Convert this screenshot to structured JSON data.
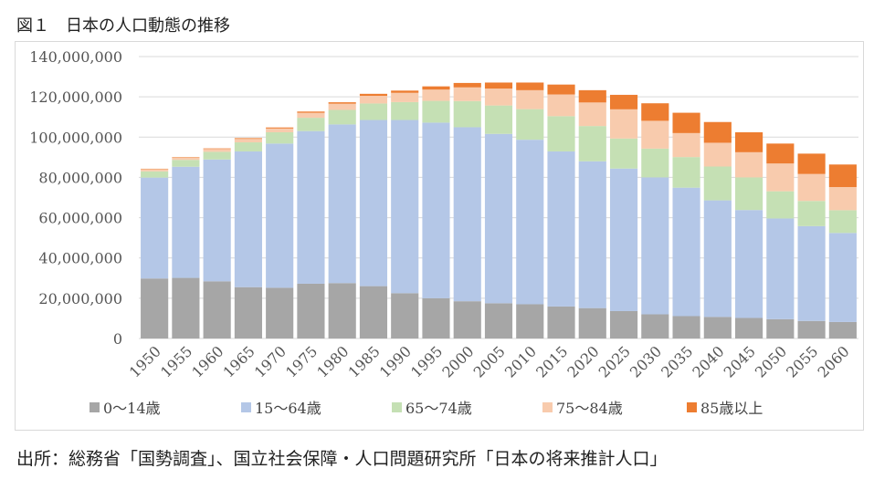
{
  "header": {
    "title": "図１　日本の人口動態の推移"
  },
  "footer": {
    "source": "出所：総務省「国勢調査」、国立社会保障・人口問題研究所「日本の将来推計人口」"
  },
  "chart_data": {
    "type": "bar",
    "stacked": true,
    "categories": [
      "1950",
      "1955",
      "1960",
      "1965",
      "1970",
      "1975",
      "1980",
      "1985",
      "1990",
      "1995",
      "2000",
      "2005",
      "2010",
      "2015",
      "2020",
      "2025",
      "2030",
      "2035",
      "2040",
      "2045",
      "2050",
      "2055",
      "2060"
    ],
    "series": [
      {
        "name": "0〜14歳",
        "color": "#a6a6a6",
        "values": [
          29800000,
          30100000,
          28400000,
          25500000,
          25200000,
          27200000,
          27500000,
          26000000,
          22500000,
          20000000,
          18500000,
          17500000,
          17000000,
          15900000,
          15100000,
          13600000,
          12000000,
          11100000,
          10700000,
          10200000,
          9600000,
          8700000,
          8200000
        ]
      },
      {
        "name": "15〜64歳",
        "color": "#b4c7e7",
        "values": [
          50100000,
          55200000,
          60500000,
          67400000,
          71600000,
          75800000,
          78800000,
          82500000,
          86000000,
          87200000,
          86400000,
          84100000,
          81700000,
          77000000,
          72900000,
          70800000,
          68000000,
          63800000,
          57900000,
          53600000,
          50000000,
          47100000,
          44200000
        ]
      },
      {
        "name": "65〜74歳",
        "color": "#c5e0b4",
        "values": [
          3100000,
          3400000,
          3800000,
          4500000,
          5600000,
          6600000,
          7200000,
          8200000,
          8900000,
          10800000,
          13000000,
          14100000,
          15200000,
          17500000,
          17500000,
          14900000,
          14300000,
          15200000,
          16800000,
          16200000,
          13500000,
          12500000,
          11300000
        ]
      },
      {
        "name": "75〜84歳",
        "color": "#f8cbad",
        "values": [
          1100000,
          1200000,
          1400000,
          1700000,
          1900000,
          2500000,
          3100000,
          3800000,
          4600000,
          5600000,
          6800000,
          8400000,
          9400000,
          10800000,
          11700000,
          14500000,
          13800000,
          11900000,
          11800000,
          12500000,
          13800000,
          13400000,
          11500000
        ]
      },
      {
        "name": "85歳以上",
        "color": "#ed7d31",
        "values": [
          200000,
          200000,
          300000,
          400000,
          500000,
          600000,
          700000,
          1000000,
          1100000,
          1600000,
          2200000,
          3000000,
          3800000,
          4900000,
          6100000,
          7200000,
          8700000,
          10100000,
          10300000,
          9900000,
          9900000,
          10100000,
          11200000
        ]
      }
    ],
    "ylim": [
      0,
      140000000
    ],
    "yticks": [
      "0",
      "20,000,000",
      "40,000,000",
      "60,000,000",
      "80,000,000",
      "100,000,000",
      "120,000,000",
      "140,000,000"
    ],
    "grid": true,
    "legend_position": "bottom"
  }
}
